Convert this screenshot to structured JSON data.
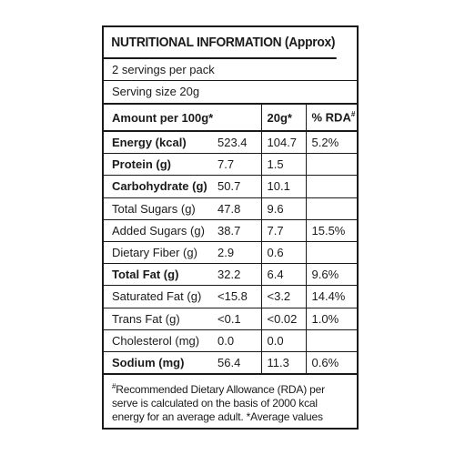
{
  "label": {
    "title": "NUTRITIONAL INFORMATION (Approx)",
    "servings_per_pack": "2 servings per pack",
    "serving_size": "Serving size 20g",
    "header": {
      "amount": "Amount per 100g*",
      "per_serving": "20g*",
      "rda": "% RDA",
      "rda_mark": "#"
    },
    "rows": [
      {
        "name": "Energy (kcal)",
        "per100": "523.4",
        "per_serving": "104.7",
        "rda": "5.2%",
        "bold": true
      },
      {
        "name": "Protein (g)",
        "per100": "7.7",
        "per_serving": "1.5",
        "rda": "",
        "bold": true
      },
      {
        "name": "Carbohydrate (g)",
        "per100": "50.7",
        "per_serving": "10.1",
        "rda": "",
        "bold": true
      },
      {
        "name": "Total Sugars (g)",
        "per100": "47.8",
        "per_serving": "9.6",
        "rda": "",
        "bold": false
      },
      {
        "name": "Added Sugars (g)",
        "per100": "38.7",
        "per_serving": "7.7",
        "rda": "15.5%",
        "bold": false
      },
      {
        "name": "Dietary Fiber (g)",
        "per100": "2.9",
        "per_serving": "0.6",
        "rda": "",
        "bold": false
      },
      {
        "name": "Total Fat (g)",
        "per100": "32.2",
        "per_serving": "6.4",
        "rda": "9.6%",
        "bold": true
      },
      {
        "name": "Saturated Fat (g)",
        "per100": "<15.8",
        "per_serving": "<3.2",
        "rda": "14.4%",
        "bold": false
      },
      {
        "name": "Trans Fat (g)",
        "per100": "<0.1",
        "per_serving": "<0.02",
        "rda": "1.0%",
        "bold": false
      },
      {
        "name": "Cholesterol (mg)",
        "per100": "0.0",
        "per_serving": "0.0",
        "rda": "",
        "bold": false
      },
      {
        "name": "Sodium (mg)",
        "per100": "56.4",
        "per_serving": "11.3",
        "rda": "0.6%",
        "bold": true
      }
    ],
    "footnote_mark": "#",
    "footnote": "Recommended Dietary Allowance (RDA) per serve is calculated on the basis of 2000 kcal energy for an average adult. *Average values"
  }
}
